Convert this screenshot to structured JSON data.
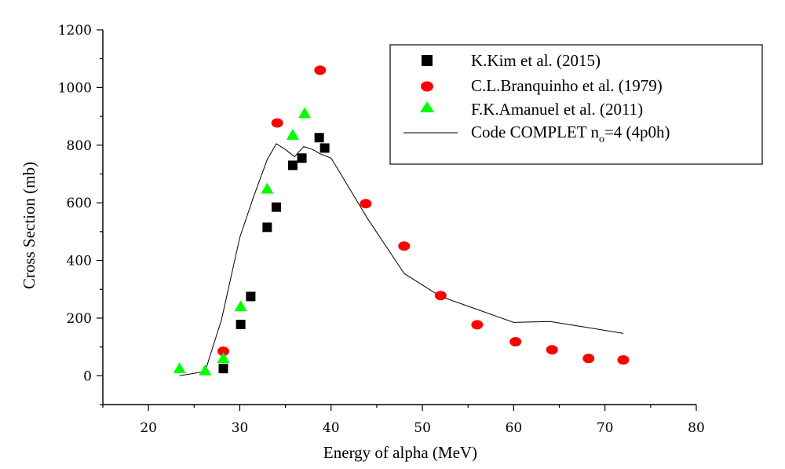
{
  "chart_data": {
    "type": "scatter",
    "xlabel": "Energy of alpha (MeV)",
    "ylabel": "Cross Section (mb)",
    "xlim": [
      15,
      80
    ],
    "ylim": [
      -100,
      1200
    ],
    "x_ticks": [
      20,
      30,
      40,
      50,
      60,
      70,
      80
    ],
    "y_ticks": [
      0,
      200,
      400,
      600,
      800,
      1000,
      1200
    ],
    "x_tick_labels": [
      "20",
      "30",
      "40",
      "50",
      "60",
      "70",
      "80"
    ],
    "y_tick_labels": [
      "0",
      "200",
      "400",
      "600",
      "800",
      "1000",
      "1200"
    ],
    "grid": false,
    "legend": "top-right",
    "series": [
      {
        "name": "K.Kim et al. (2015)",
        "marker": "square",
        "color": "#000000",
        "x": [
          28.2,
          30.1,
          31.2,
          33.0,
          34.0,
          35.8,
          36.8,
          38.7,
          39.3
        ],
        "y": [
          25,
          178,
          275,
          515,
          585,
          730,
          755,
          826,
          790
        ]
      },
      {
        "name": "C.L.Branquinho et al. (1979)",
        "marker": "circle",
        "color": "#ff0000",
        "x": [
          28.2,
          34.1,
          38.8,
          43.8,
          48.0,
          52.0,
          56.0,
          60.2,
          64.2,
          68.2,
          72.0
        ],
        "y": [
          85,
          877,
          1060,
          597,
          450,
          278,
          177,
          118,
          90,
          60,
          55
        ]
      },
      {
        "name": "F.K.Amanuel et al. (2011)",
        "marker": "triangle",
        "color": "#00ff00",
        "x": [
          23.4,
          26.2,
          28.2,
          30.1,
          33.0,
          35.8,
          37.1
        ],
        "y": [
          25,
          18,
          60,
          240,
          648,
          835,
          910
        ]
      },
      {
        "name_main": "Code COMPLET n",
        "name_sub": "o",
        "name_tail": "=4 (4p0h)",
        "marker": "line",
        "color": "#000000",
        "x": [
          23.4,
          26.2,
          28.0,
          30.0,
          31.5,
          33.0,
          34.0,
          35.0,
          36.0,
          37.0,
          38.0,
          38.8,
          40.0,
          44.0,
          48.0,
          52.0,
          56.0,
          60.0,
          64.0,
          68.0,
          72.0
        ],
        "y": [
          0,
          15,
          195,
          480,
          620,
          750,
          805,
          785,
          760,
          795,
          785,
          770,
          755,
          545,
          355,
          275,
          230,
          185,
          188,
          168,
          147
        ]
      }
    ]
  }
}
